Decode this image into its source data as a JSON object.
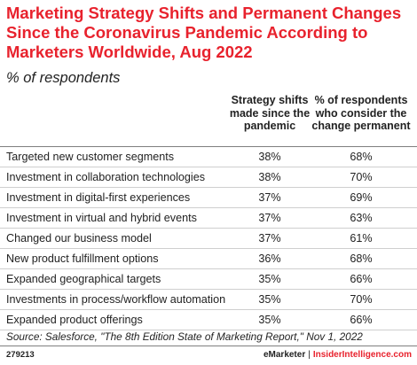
{
  "title": "Marketing Strategy Shifts and Permanent Changes Since the Coronavirus Pandemic According to Marketers Worldwide, Aug 2022",
  "subtitle": "% of respondents",
  "chart_data": {
    "type": "table",
    "columns": [
      "Strategy shifts made since the pandemic",
      "% of respondents who consider the change permanent"
    ],
    "rows": [
      {
        "label": "Targeted new customer segments",
        "values": [
          "38%",
          "68%"
        ]
      },
      {
        "label": "Investment in collaboration technologies",
        "values": [
          "38%",
          "70%"
        ]
      },
      {
        "label": "Investment in digital-first experiences",
        "values": [
          "37%",
          "69%"
        ]
      },
      {
        "label": "Investment in virtual and hybrid events",
        "values": [
          "37%",
          "63%"
        ]
      },
      {
        "label": "Changed our business model",
        "values": [
          "37%",
          "61%"
        ]
      },
      {
        "label": "New product fulfillment options",
        "values": [
          "36%",
          "68%"
        ]
      },
      {
        "label": "Expanded geographical targets",
        "values": [
          "35%",
          "66%"
        ]
      },
      {
        "label": "Investments in process/workflow automation",
        "values": [
          "35%",
          "70%"
        ]
      },
      {
        "label": "Expanded product offerings",
        "values": [
          "35%",
          "66%"
        ]
      }
    ]
  },
  "source": "Source: Salesforce, \"The 8th Edition State of Marketing Report,\" Nov 1, 2022",
  "chart_id": "279213",
  "brand": {
    "left": "eMarketer",
    "separator": "|",
    "right": "InsiderIntelligence.com"
  },
  "colors": {
    "accent": "#e8222d",
    "text": "#222222",
    "rule": "#7f7f7f",
    "row_rule": "#cfcfcf"
  }
}
